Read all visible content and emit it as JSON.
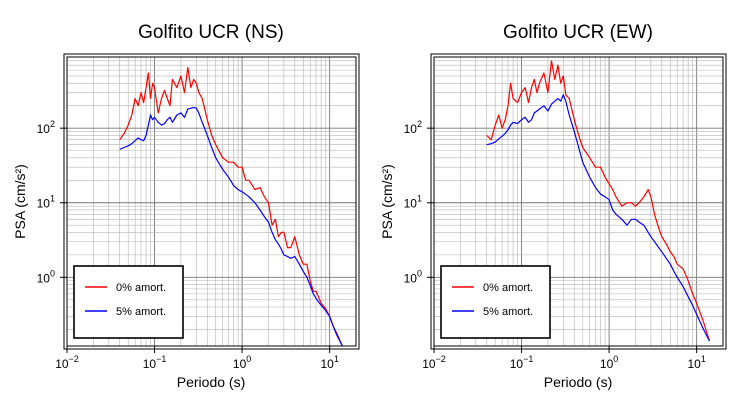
{
  "chart_data": [
    {
      "type": "line",
      "title": "Golfito UCR (NS)",
      "xlabel": "Periodo (s)",
      "ylabel": "PSA (cm/s²)",
      "x_scale": "log",
      "y_scale": "log",
      "xlim": [
        0.01,
        20
      ],
      "ylim": [
        0.12,
        900
      ],
      "x_ticks": [
        {
          "v": 0.01,
          "base": "10",
          "exp": "−2"
        },
        {
          "v": 0.1,
          "base": "10",
          "exp": "−1"
        },
        {
          "v": 1,
          "base": "10",
          "exp": "0"
        },
        {
          "v": 10,
          "base": "10",
          "exp": "1"
        }
      ],
      "y_ticks": [
        {
          "v": 1,
          "base": "10",
          "exp": "0"
        },
        {
          "v": 10,
          "base": "10",
          "exp": "1"
        },
        {
          "v": 100,
          "base": "10",
          "exp": "2"
        }
      ],
      "grid": true,
      "legend_position": "bottom-left",
      "series": [
        {
          "name": "0% amort.",
          "color": "#ff0000",
          "x": [
            0.04,
            0.045,
            0.05,
            0.055,
            0.06,
            0.065,
            0.07,
            0.075,
            0.08,
            0.085,
            0.09,
            0.095,
            0.1,
            0.11,
            0.12,
            0.13,
            0.14,
            0.15,
            0.16,
            0.18,
            0.2,
            0.22,
            0.24,
            0.26,
            0.28,
            0.3,
            0.32,
            0.35,
            0.4,
            0.45,
            0.5,
            0.6,
            0.7,
            0.8,
            0.9,
            1.0,
            1.1,
            1.2,
            1.4,
            1.6,
            1.8,
            2.0,
            2.2,
            2.4,
            2.6,
            2.8,
            3.0,
            3.3,
            3.6,
            4.0,
            4.5,
            5.0,
            5.5,
            6.0,
            6.5,
            7.0,
            8.0,
            9.0,
            10,
            11,
            12,
            14
          ],
          "y": [
            70,
            85,
            110,
            150,
            250,
            200,
            300,
            220,
            350,
            550,
            250,
            400,
            350,
            160,
            250,
            320,
            250,
            200,
            450,
            350,
            500,
            300,
            650,
            350,
            450,
            400,
            300,
            250,
            130,
            80,
            60,
            40,
            35,
            35,
            30,
            30,
            20,
            20,
            15,
            16,
            12,
            10,
            5,
            6,
            3.5,
            4,
            4,
            2.5,
            2.5,
            3.5,
            2,
            1.5,
            1.5,
            0.9,
            0.65,
            0.65,
            0.45,
            0.38,
            0.3,
            0.22,
            0.18,
            0.12
          ]
        },
        {
          "name": "5% amort.",
          "color": "#0000ff",
          "x": [
            0.04,
            0.045,
            0.05,
            0.055,
            0.06,
            0.065,
            0.07,
            0.075,
            0.08,
            0.085,
            0.09,
            0.095,
            0.1,
            0.11,
            0.12,
            0.13,
            0.14,
            0.15,
            0.16,
            0.18,
            0.2,
            0.22,
            0.24,
            0.26,
            0.28,
            0.3,
            0.32,
            0.35,
            0.4,
            0.45,
            0.5,
            0.6,
            0.7,
            0.8,
            0.9,
            1.0,
            1.1,
            1.2,
            1.4,
            1.6,
            1.8,
            2.0,
            2.2,
            2.4,
            2.6,
            2.8,
            3.0,
            3.3,
            3.6,
            4.0,
            4.5,
            5.0,
            5.5,
            6.0,
            6.5,
            7.0,
            8.0,
            9.0,
            10,
            11,
            12,
            14
          ],
          "y": [
            52,
            55,
            58,
            62,
            68,
            74,
            70,
            68,
            80,
            110,
            150,
            130,
            140,
            120,
            110,
            115,
            130,
            140,
            120,
            150,
            160,
            140,
            180,
            185,
            190,
            185,
            160,
            120,
            80,
            55,
            40,
            28,
            22,
            17,
            15,
            14,
            13,
            12,
            10,
            8,
            6.5,
            5.5,
            4,
            3.2,
            2.8,
            2.4,
            2.0,
            1.9,
            1.8,
            1.9,
            1.5,
            1.2,
            1.0,
            0.78,
            0.6,
            0.52,
            0.42,
            0.36,
            0.3,
            0.22,
            0.17,
            0.12
          ]
        }
      ]
    },
    {
      "type": "line",
      "title": "Golfito UCR (EW)",
      "xlabel": "Periodo (s)",
      "ylabel": "PSA (cm/s²)",
      "x_scale": "log",
      "y_scale": "log",
      "xlim": [
        0.01,
        20
      ],
      "ylim": [
        0.12,
        900
      ],
      "x_ticks": [
        {
          "v": 0.01,
          "base": "10",
          "exp": "−2"
        },
        {
          "v": 0.1,
          "base": "10",
          "exp": "−1"
        },
        {
          "v": 1,
          "base": "10",
          "exp": "0"
        },
        {
          "v": 10,
          "base": "10",
          "exp": "1"
        }
      ],
      "y_ticks": [
        {
          "v": 1,
          "base": "10",
          "exp": "0"
        },
        {
          "v": 10,
          "base": "10",
          "exp": "1"
        },
        {
          "v": 100,
          "base": "10",
          "exp": "2"
        }
      ],
      "grid": true,
      "legend_position": "bottom-left",
      "series": [
        {
          "name": "0% amort.",
          "color": "#ff0000",
          "x": [
            0.04,
            0.045,
            0.05,
            0.055,
            0.06,
            0.065,
            0.07,
            0.075,
            0.08,
            0.09,
            0.1,
            0.11,
            0.12,
            0.13,
            0.14,
            0.15,
            0.16,
            0.18,
            0.2,
            0.22,
            0.24,
            0.26,
            0.28,
            0.3,
            0.32,
            0.35,
            0.4,
            0.45,
            0.5,
            0.6,
            0.7,
            0.8,
            0.9,
            1.0,
            1.1,
            1.2,
            1.4,
            1.6,
            1.8,
            2.0,
            2.2,
            2.5,
            2.8,
            3.0,
            3.3,
            3.6,
            4.0,
            4.5,
            5.0,
            5.5,
            6.0,
            7.0,
            8.0,
            9.0,
            10,
            11,
            12,
            14
          ],
          "y": [
            80,
            70,
            110,
            150,
            100,
            130,
            200,
            400,
            250,
            220,
            300,
            350,
            220,
            350,
            450,
            300,
            400,
            550,
            300,
            800,
            450,
            700,
            400,
            500,
            280,
            250,
            130,
            80,
            55,
            40,
            30,
            30,
            22,
            18,
            15,
            12,
            9,
            10,
            10,
            9,
            10,
            12,
            15,
            12,
            7,
            5,
            3.5,
            2.8,
            2.2,
            1.9,
            1.5,
            1.3,
            0.9,
            0.6,
            0.45,
            0.33,
            0.25,
            0.14
          ]
        },
        {
          "name": "5% amort.",
          "color": "#0000ff",
          "x": [
            0.04,
            0.045,
            0.05,
            0.055,
            0.06,
            0.065,
            0.07,
            0.075,
            0.08,
            0.09,
            0.1,
            0.11,
            0.12,
            0.13,
            0.14,
            0.15,
            0.16,
            0.18,
            0.2,
            0.22,
            0.24,
            0.26,
            0.28,
            0.3,
            0.32,
            0.35,
            0.4,
            0.45,
            0.5,
            0.6,
            0.7,
            0.8,
            0.9,
            1.0,
            1.1,
            1.2,
            1.4,
            1.6,
            1.8,
            2.0,
            2.2,
            2.5,
            2.8,
            3.0,
            3.3,
            3.6,
            4.0,
            4.5,
            5.0,
            5.5,
            6.0,
            7.0,
            8.0,
            9.0,
            10,
            11,
            12,
            14
          ],
          "y": [
            60,
            62,
            65,
            72,
            78,
            85,
            95,
            110,
            120,
            115,
            130,
            140,
            120,
            130,
            160,
            170,
            180,
            200,
            170,
            210,
            230,
            250,
            230,
            280,
            230,
            150,
            90,
            55,
            35,
            22,
            16,
            13,
            12,
            11,
            8,
            7,
            6,
            5,
            6,
            6,
            5.5,
            5,
            4,
            3.5,
            3,
            2.6,
            2.2,
            1.8,
            1.5,
            1.2,
            1.0,
            0.75,
            0.55,
            0.42,
            0.32,
            0.25,
            0.2,
            0.14
          ]
        }
      ]
    }
  ]
}
